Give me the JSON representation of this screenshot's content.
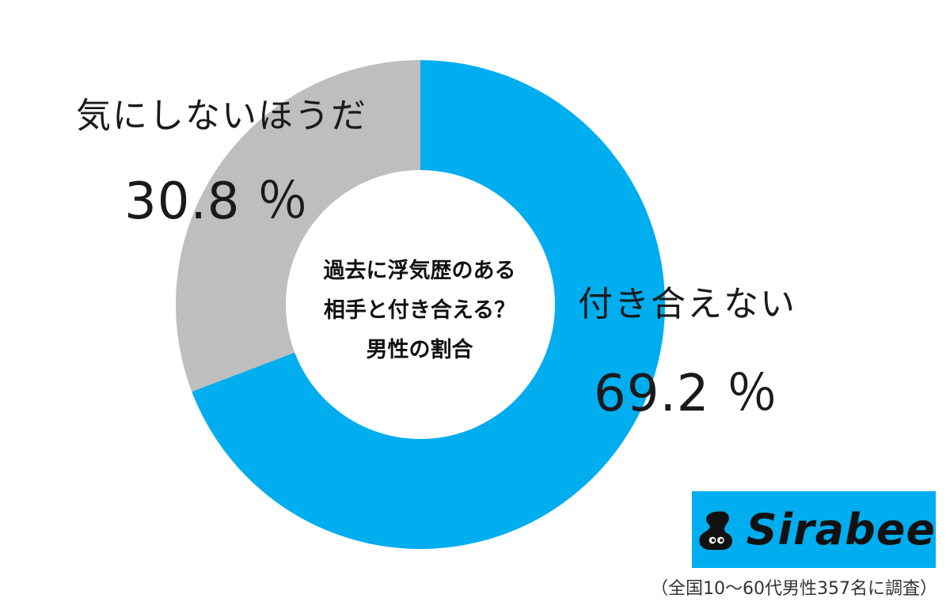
{
  "chart_data": {
    "type": "pie",
    "title": "過去に浮気歴のある相手と付き合える？男性の割合",
    "title_lines": [
      "過去に浮気歴のある",
      "相手と付き合える？",
      "男性の割合"
    ],
    "slices": [
      {
        "label": "付き合えない",
        "value": 69.2,
        "value_label": "69.2 ％",
        "color": "#00adef"
      },
      {
        "label": "気にしないほうだ",
        "value": 30.8,
        "value_label": "30.8 ％",
        "color": "#bebebe"
      }
    ],
    "note": "（全国10～60代男性357名に調査）"
  },
  "brand": {
    "name": "Sirabee",
    "bg_color": "#00adef"
  }
}
